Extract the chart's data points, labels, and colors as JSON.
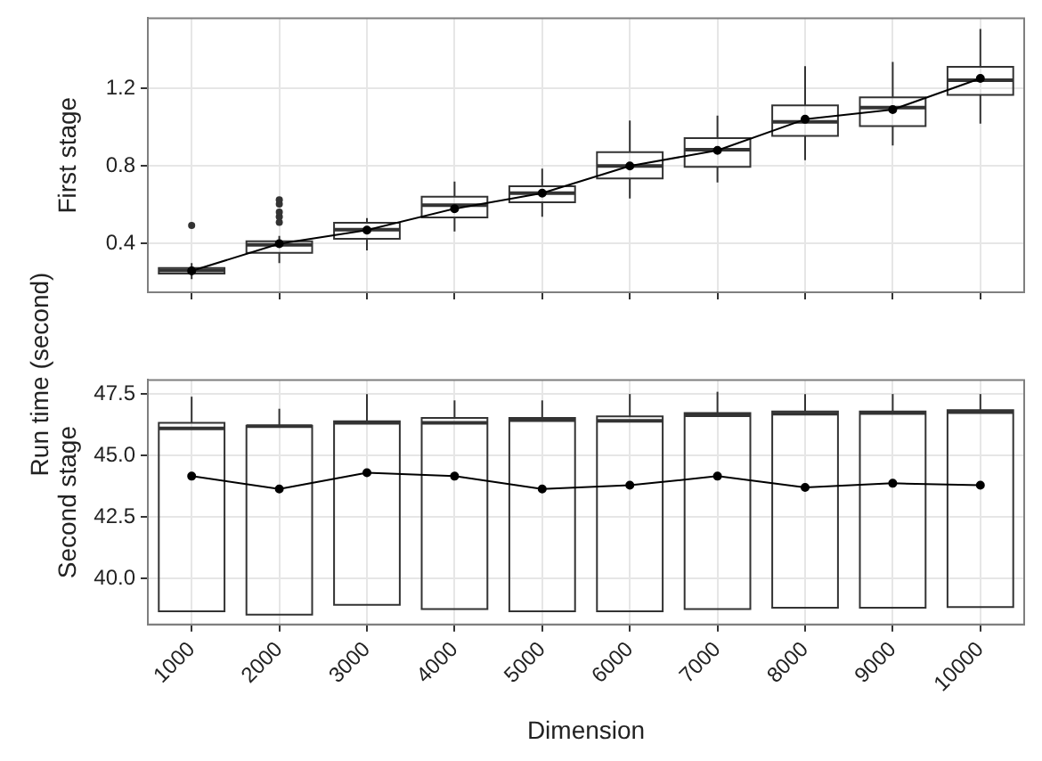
{
  "chart_data": [
    {
      "type": "box",
      "ylabel": "First stage",
      "annotations": [
        "Run time (second)"
      ],
      "categories": [
        "1000",
        "2000",
        "3000",
        "4000",
        "5000",
        "6000",
        "7000",
        "8000",
        "9000",
        "10000"
      ],
      "ylim": [
        0.15,
        1.56
      ],
      "yticks": [
        0.4,
        0.8,
        1.2
      ],
      "grid": true,
      "tick_labels": "y",
      "marker": "circle",
      "series": [
        {
          "type": "box",
          "color": "#333333",
          "boxes": [
            {
              "low": 0.218,
              "q1": 0.246,
              "median": 0.262,
              "q3": 0.275,
              "high": 0.3,
              "outliers": [
                0.494
              ]
            },
            {
              "low": 0.3,
              "q1": 0.353,
              "median": 0.394,
              "q3": 0.413,
              "high": 0.44,
              "outliers": [
                0.51,
                0.538,
                0.563,
                0.604,
                0.626
              ]
            },
            {
              "low": 0.365,
              "q1": 0.425,
              "median": 0.472,
              "q3": 0.507,
              "high": 0.532
            },
            {
              "low": 0.463,
              "q1": 0.535,
              "median": 0.598,
              "q3": 0.642,
              "high": 0.72
            },
            {
              "low": 0.538,
              "q1": 0.613,
              "median": 0.66,
              "q3": 0.695,
              "high": 0.786
            },
            {
              "low": 0.632,
              "q1": 0.736,
              "median": 0.8,
              "q3": 0.871,
              "high": 1.034
            },
            {
              "low": 0.715,
              "q1": 0.795,
              "median": 0.883,
              "q3": 0.943,
              "high": 1.059
            },
            {
              "low": 0.83,
              "q1": 0.955,
              "median": 1.027,
              "q3": 1.112,
              "high": 1.313
            },
            {
              "low": 0.905,
              "q1": 1.005,
              "median": 1.1,
              "q3": 1.153,
              "high": 1.335
            },
            {
              "low": 1.018,
              "q1": 1.165,
              "median": 1.241,
              "q3": 1.31,
              "high": 1.504
            }
          ]
        },
        {
          "type": "line",
          "color": "#000000",
          "values": [
            0.26,
            0.4,
            0.47,
            0.58,
            0.66,
            0.8,
            0.88,
            1.04,
            1.09,
            1.25
          ]
        }
      ]
    },
    {
      "type": "box",
      "ylabel": "Second stage",
      "xlabel": "Dimension",
      "categories": [
        "1000",
        "2000",
        "3000",
        "4000",
        "5000",
        "6000",
        "7000",
        "8000",
        "9000",
        "10000"
      ],
      "ylim": [
        38.13,
        48.07
      ],
      "yticks": [
        {
          "value": 40,
          "label": "40.0"
        },
        42.5,
        {
          "value": 45,
          "label": "45.0"
        },
        47.5
      ],
      "grid": true,
      "marker": "circle",
      "series": [
        {
          "type": "box",
          "color": "#333333",
          "boxes": [
            {
              "low": 38.67,
              "q1": 38.67,
              "median": 46.1,
              "q3": 46.33,
              "high": 47.39
            },
            {
              "low": 38.53,
              "q1": 38.53,
              "median": 46.19,
              "q3": 46.21,
              "high": 46.9
            },
            {
              "low": 38.93,
              "q1": 38.93,
              "median": 46.33,
              "q3": 46.39,
              "high": 47.5
            },
            {
              "low": 38.76,
              "q1": 38.76,
              "median": 46.33,
              "q3": 46.53,
              "high": 47.24
            },
            {
              "low": 38.67,
              "q1": 38.67,
              "median": 46.44,
              "q3": 46.53,
              "high": 47.24
            },
            {
              "low": 38.67,
              "q1": 38.67,
              "median": 46.41,
              "q3": 46.59,
              "high": 47.5
            },
            {
              "low": 38.76,
              "q1": 38.76,
              "median": 46.64,
              "q3": 46.73,
              "high": 47.59
            },
            {
              "low": 38.81,
              "q1": 38.81,
              "median": 46.7,
              "q3": 46.79,
              "high": 47.5
            },
            {
              "low": 38.81,
              "q1": 38.81,
              "median": 46.73,
              "q3": 46.79,
              "high": 47.5
            },
            {
              "low": 38.84,
              "q1": 38.84,
              "median": 46.76,
              "q3": 46.84,
              "high": 47.5
            }
          ]
        },
        {
          "type": "line",
          "color": "#000000",
          "values": [
            44.16,
            43.64,
            44.3,
            44.16,
            43.64,
            43.79,
            44.16,
            43.7,
            43.87,
            43.79
          ]
        }
      ]
    }
  ]
}
